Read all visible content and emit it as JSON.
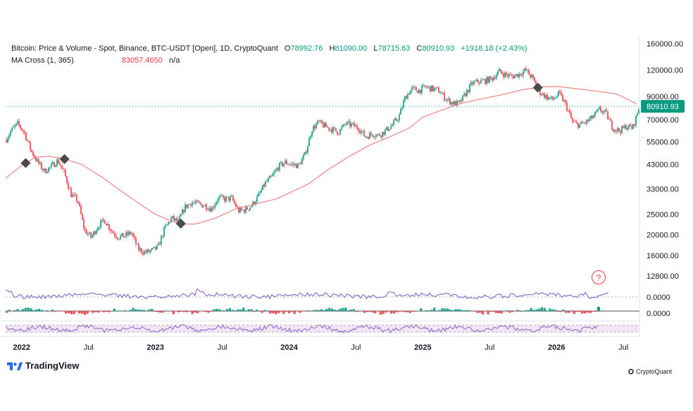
{
  "header": {
    "title": "Bitcoin: Price & Volume - Spot, Binance, BTC-USDT [Open], 1D, CryptoQuant",
    "open_label": "O",
    "open": "78992.76",
    "high_label": "H",
    "high": "81090.00",
    "low_label": "L",
    "low": "78715.63",
    "close_label": "C",
    "close": "80910.93",
    "change": "+1918.18 (+2.43%)"
  },
  "ma_legend": {
    "label": "MA Cross (1, 365)",
    "value": "83057.4650",
    "value2": "n/a"
  },
  "help_button": "?",
  "branding": {
    "left": "TradingView",
    "right": "CryptoQuant"
  },
  "colors": {
    "up": "#089981",
    "down": "#f23645",
    "ma": "#f07a7a",
    "osc": "#7e57c2",
    "rsi_band": "#f3e5f5",
    "last_price_bg": "#089981"
  },
  "chart_data": {
    "type": "line",
    "scale": "log",
    "price_ylim": [
      11500,
      165000
    ],
    "price_ticks": [
      160000,
      120000,
      90000,
      70000,
      55000,
      43000,
      33000,
      25000,
      20000,
      16000,
      12800
    ],
    "price_tick_labels": [
      "160000.00",
      "120000.00",
      "90000.00",
      "70000.00",
      "55000.00",
      "43000.00",
      "33000.00",
      "25000.00",
      "20000.00",
      "16000.00",
      "12800.00"
    ],
    "x_range": [
      2021.88,
      2026.62
    ],
    "x_ticks": [
      {
        "x": 2022.0,
        "label": "2022",
        "bold": true
      },
      {
        "x": 2022.5,
        "label": "Jul",
        "bold": false
      },
      {
        "x": 2023.0,
        "label": "2023",
        "bold": true
      },
      {
        "x": 2023.5,
        "label": "Jul",
        "bold": false
      },
      {
        "x": 2024.0,
        "label": "2024",
        "bold": true
      },
      {
        "x": 2024.5,
        "label": "Jul",
        "bold": false
      },
      {
        "x": 2025.0,
        "label": "2025",
        "bold": true
      },
      {
        "x": 2025.5,
        "label": "Jul",
        "bold": false
      },
      {
        "x": 2026.0,
        "label": "2026",
        "bold": true
      },
      {
        "x": 2026.5,
        "label": "Jul",
        "bold": false
      }
    ],
    "last_price": 80910.93,
    "last_price_label": "80910.93",
    "series": [
      {
        "kind": "price",
        "x": [
          2021.88,
          2021.92,
          2021.97,
          2022.02,
          2022.07,
          2022.12,
          2022.17,
          2022.22,
          2022.27,
          2022.32,
          2022.37,
          2022.42,
          2022.47,
          2022.52,
          2022.57,
          2022.62,
          2022.67,
          2022.72,
          2022.77,
          2022.82,
          2022.87,
          2022.92,
          2022.97,
          2023.02,
          2023.07,
          2023.12,
          2023.17,
          2023.22,
          2023.27,
          2023.32,
          2023.37,
          2023.42,
          2023.47,
          2023.52,
          2023.57,
          2023.62,
          2023.67,
          2023.72,
          2023.77,
          2023.82,
          2023.87,
          2023.92,
          2023.97,
          2024.02,
          2024.07,
          2024.12,
          2024.17,
          2024.22,
          2024.27,
          2024.32,
          2024.37,
          2024.42,
          2024.47,
          2024.52,
          2024.57,
          2024.62,
          2024.67,
          2024.72,
          2024.77,
          2024.82,
          2024.87,
          2024.92,
          2024.97,
          2025.02,
          2025.07,
          2025.12,
          2025.17,
          2025.22,
          2025.27,
          2025.32,
          2025.37,
          2025.42,
          2025.47,
          2025.52,
          2025.57,
          2025.62,
          2025.67,
          2025.72,
          2025.77,
          2025.82,
          2025.87,
          2025.92,
          2025.97,
          2026.02,
          2026.07,
          2026.12,
          2026.17,
          2026.22,
          2026.27,
          2026.32,
          2026.37,
          2026.42,
          2026.47,
          2026.52,
          2026.57,
          2026.62
        ],
        "y": [
          56000,
          62000,
          67000,
          61000,
          50000,
          44000,
          40000,
          42000,
          45000,
          39000,
          31000,
          29000,
          21000,
          19500,
          22000,
          23500,
          21000,
          19500,
          19800,
          20500,
          17200,
          16500,
          16800,
          17500,
          21500,
          24000,
          23000,
          27000,
          28500,
          28000,
          27500,
          26500,
          30000,
          29500,
          29800,
          26000,
          26200,
          27500,
          30500,
          35000,
          37500,
          42000,
          44000,
          43000,
          42500,
          48000,
          63000,
          68000,
          65000,
          63000,
          61000,
          67000,
          66000,
          64000,
          58000,
          60000,
          59000,
          62000,
          66000,
          72000,
          90000,
          98000,
          96000,
          100000,
          98000,
          96000,
          88000,
          84000,
          83000,
          93000,
          104000,
          106000,
          107000,
          110000,
          118000,
          114000,
          112000,
          115000,
          120000,
          110000,
          95000,
          90000,
          87000,
          93000,
          82000,
          68000,
          66000,
          68000,
          72000,
          78000,
          75000,
          64000,
          62000,
          65000,
          64000,
          80910
        ]
      },
      {
        "kind": "ma",
        "name": "MA Cross (1, 365)",
        "x": [
          2021.88,
          2022.0,
          2022.1,
          2022.2,
          2022.3,
          2022.45,
          2022.6,
          2022.75,
          2022.9,
          2023.0,
          2023.1,
          2023.2,
          2023.3,
          2023.45,
          2023.6,
          2023.75,
          2023.9,
          2024.0,
          2024.15,
          2024.3,
          2024.45,
          2024.6,
          2024.75,
          2024.9,
          2025.0,
          2025.15,
          2025.3,
          2025.45,
          2025.6,
          2025.75,
          2025.9,
          2026.0,
          2026.15,
          2026.3,
          2026.45,
          2026.6
        ],
        "y": [
          37000,
          42500,
          46500,
          47000,
          46000,
          43000,
          37500,
          32000,
          27500,
          25000,
          23500,
          22500,
          22500,
          24000,
          26500,
          28000,
          29500,
          31500,
          35000,
          41000,
          47000,
          53000,
          58000,
          64000,
          72000,
          78000,
          84000,
          88000,
          92000,
          97000,
          100000,
          100500,
          98000,
          95500,
          92500,
          83057
        ]
      }
    ],
    "sub_panels": [
      {
        "name": "volume-oscillator",
        "zero_label": "0.0000"
      },
      {
        "name": "histogram",
        "zero_label": "0.0000"
      },
      {
        "name": "rsi-band"
      }
    ]
  }
}
